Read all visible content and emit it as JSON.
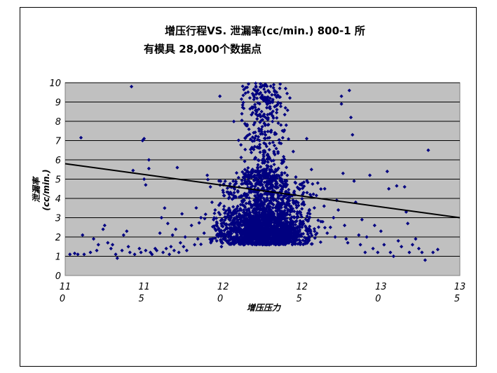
{
  "chart_data": {
    "type": "scatter",
    "title_lines": [
      "增压行程VS. 泄漏率(cc/min.)  800-1 所",
      "有模具 28,000个数据点"
    ],
    "xlabel": "增压压力",
    "ylabel_lines": [
      "泄漏率",
      "(cc/min.)"
    ],
    "xlim": [
      110,
      135
    ],
    "ylim": [
      0,
      10
    ],
    "x_ticks": [
      110,
      115,
      120,
      125,
      130,
      135
    ],
    "x_tick_labels": [
      [
        "11",
        "0"
      ],
      [
        "11",
        "5"
      ],
      [
        "12",
        "0"
      ],
      [
        "12",
        "5"
      ],
      [
        "13",
        "0"
      ],
      [
        "13",
        "5"
      ]
    ],
    "y_ticks": [
      0,
      1,
      2,
      3,
      4,
      5,
      6,
      7,
      8,
      9,
      10
    ],
    "y_tick_labels": [
      "0",
      "1",
      "2",
      "3",
      "4",
      "5",
      "6",
      "7",
      "8",
      "9",
      "10"
    ],
    "grid": "horizontal",
    "plot_background": "#c0c0c0",
    "marker_color": "#000080",
    "trendline": {
      "x": [
        110,
        135
      ],
      "y": [
        5.8,
        3.0
      ],
      "color": "#000000"
    },
    "series": [
      {
        "points": [
          [
            110.3,
            1.1
          ],
          [
            110.6,
            1.15
          ],
          [
            110.8,
            1.1
          ],
          [
            111.0,
            7.15
          ],
          [
            111.1,
            2.1
          ],
          [
            111.2,
            1.1
          ],
          [
            111.6,
            1.2
          ],
          [
            111.8,
            1.9
          ],
          [
            112.0,
            1.3
          ],
          [
            112.1,
            1.6
          ],
          [
            112.4,
            2.4
          ],
          [
            112.5,
            2.6
          ],
          [
            112.7,
            1.7
          ],
          [
            112.9,
            1.4
          ],
          [
            113.0,
            1.6
          ],
          [
            113.2,
            1.1
          ],
          [
            113.3,
            0.9
          ],
          [
            113.6,
            1.3
          ],
          [
            113.7,
            2.1
          ],
          [
            113.9,
            2.3
          ],
          [
            114.0,
            1.5
          ],
          [
            114.1,
            1.2
          ],
          [
            114.2,
            9.8
          ],
          [
            114.3,
            5.45
          ],
          [
            114.4,
            1.1
          ],
          [
            114.7,
            1.4
          ],
          [
            114.8,
            1.2
          ],
          [
            114.9,
            7.0
          ],
          [
            115.0,
            7.1
          ],
          [
            115.0,
            5.0
          ],
          [
            115.1,
            4.7
          ],
          [
            115.1,
            1.3
          ],
          [
            115.3,
            5.55
          ],
          [
            115.3,
            6.0
          ],
          [
            115.4,
            1.2
          ],
          [
            115.5,
            1.1
          ],
          [
            115.7,
            1.4
          ],
          [
            115.8,
            1.3
          ],
          [
            116.0,
            2.2
          ],
          [
            116.1,
            3.0
          ],
          [
            116.2,
            1.2
          ],
          [
            116.3,
            3.5
          ],
          [
            116.4,
            1.4
          ],
          [
            116.5,
            2.7
          ],
          [
            116.6,
            1.1
          ],
          [
            116.7,
            1.5
          ],
          [
            116.8,
            2.1
          ],
          [
            116.9,
            1.3
          ],
          [
            117.0,
            2.4
          ],
          [
            117.1,
            5.6
          ],
          [
            117.2,
            1.2
          ],
          [
            117.3,
            1.7
          ],
          [
            117.4,
            3.2
          ],
          [
            117.5,
            1.5
          ],
          [
            117.6,
            2.0
          ],
          [
            117.7,
            1.3
          ],
          [
            118.0,
            2.6
          ],
          [
            118.2,
            1.6
          ],
          [
            118.4,
            1.9
          ],
          [
            118.6,
            3.0
          ],
          [
            118.8,
            2.2
          ],
          [
            119.0,
            5.2
          ],
          [
            119.2,
            4.6
          ],
          [
            119.3,
            3.8
          ],
          [
            119.4,
            2.9
          ],
          [
            119.5,
            3.4
          ],
          [
            119.6,
            1.8
          ],
          [
            119.7,
            2.4
          ],
          [
            119.8,
            9.3
          ],
          [
            119.9,
            1.5
          ],
          [
            124.0,
            7.8
          ],
          [
            124.3,
            3.5
          ],
          [
            125.1,
            4.3
          ],
          [
            125.3,
            7.1
          ],
          [
            125.5,
            3.2
          ],
          [
            125.6,
            5.5
          ],
          [
            125.8,
            2.3
          ],
          [
            126.0,
            4.8
          ],
          [
            126.2,
            2.8
          ],
          [
            126.4,
            3.6
          ],
          [
            126.6,
            2.2
          ],
          [
            126.8,
            2.5
          ],
          [
            127.0,
            3.0
          ],
          [
            127.1,
            2.0
          ],
          [
            127.2,
            3.9
          ],
          [
            127.3,
            3.4
          ],
          [
            127.5,
            9.3
          ],
          [
            127.5,
            8.9
          ],
          [
            127.6,
            5.3
          ],
          [
            127.7,
            2.6
          ],
          [
            127.8,
            1.9
          ],
          [
            127.9,
            1.7
          ],
          [
            128.0,
            9.6
          ],
          [
            128.1,
            8.2
          ],
          [
            128.2,
            7.3
          ],
          [
            128.3,
            4.9
          ],
          [
            128.4,
            3.8
          ],
          [
            128.6,
            2.1
          ],
          [
            128.7,
            1.6
          ],
          [
            128.8,
            2.9
          ],
          [
            129.0,
            1.2
          ],
          [
            129.1,
            2.0
          ],
          [
            129.3,
            5.2
          ],
          [
            129.5,
            1.4
          ],
          [
            129.6,
            2.6
          ],
          [
            129.8,
            1.2
          ],
          [
            130.0,
            2.3
          ],
          [
            130.2,
            1.6
          ],
          [
            130.4,
            5.4
          ],
          [
            130.5,
            4.5
          ],
          [
            130.6,
            1.2
          ],
          [
            130.8,
            1.0
          ],
          [
            131.0,
            4.65
          ],
          [
            131.1,
            1.8
          ],
          [
            131.3,
            1.5
          ],
          [
            131.5,
            4.6
          ],
          [
            131.6,
            3.3
          ],
          [
            131.7,
            2.7
          ],
          [
            131.8,
            1.2
          ],
          [
            132.0,
            1.6
          ],
          [
            132.2,
            1.9
          ],
          [
            132.4,
            1.4
          ],
          [
            132.6,
            1.2
          ],
          [
            132.8,
            0.8
          ],
          [
            133.0,
            6.5
          ],
          [
            133.3,
            1.2
          ],
          [
            133.6,
            1.35
          ]
        ]
      }
    ]
  }
}
